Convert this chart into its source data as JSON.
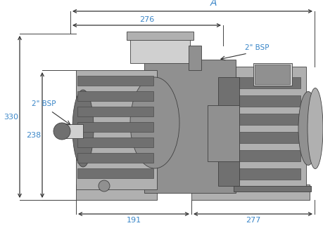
{
  "bg_color": "#ffffff",
  "dim_color": "#3a86c8",
  "line_color": "#444444",
  "arrow_color": "#333333",
  "dimensions": {
    "A_label": "A",
    "dim_276": "276",
    "dim_191": "191",
    "dim_277": "277",
    "dim_330": "330",
    "dim_238": "238",
    "bsp_left": "2\" BSP",
    "bsp_right": "2\" BSP"
  },
  "figsize": [
    4.6,
    3.25
  ],
  "dpi": 100,
  "pump": {
    "body_gray": "#b0b0b0",
    "dark_gray": "#707070",
    "mid_gray": "#909090",
    "light_gray": "#d0d0d0",
    "edge_color": "#404040",
    "edge_lw": 0.6
  }
}
